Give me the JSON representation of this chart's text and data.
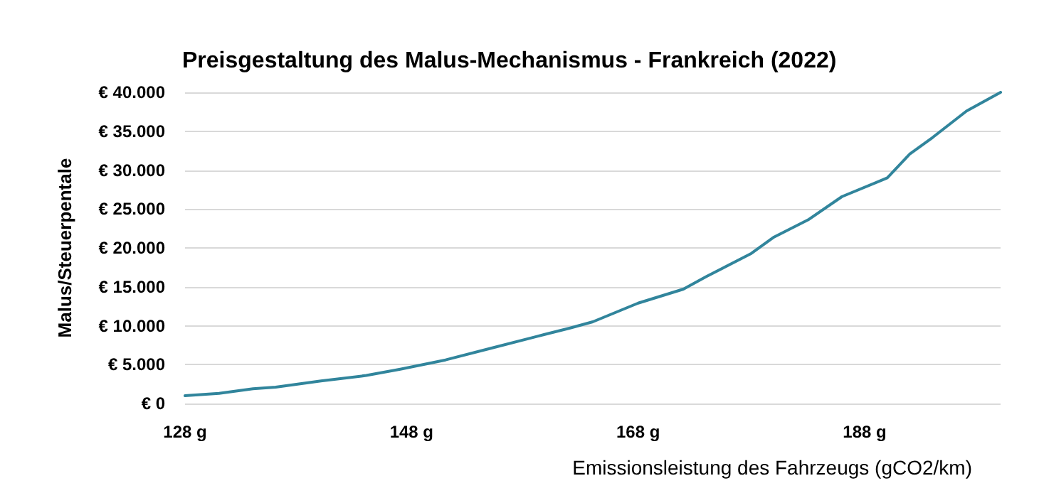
{
  "chart_data": {
    "type": "line",
    "title": "Preisgestaltung des Malus-Mechanismus - Frankreich (2022)",
    "xlabel": "Emissionsleistung des Fahrzeugs (gCO2/km)",
    "ylabel": "Malus/Steuerpentale",
    "x": [
      128,
      131,
      134,
      136,
      140,
      144,
      147,
      151,
      155,
      159,
      162,
      164,
      168,
      172,
      174,
      178,
      180,
      183,
      186,
      190,
      192,
      194,
      197,
      200
    ],
    "series": [
      {
        "color": "#31859c",
        "values": [
          1000,
          1300,
          1900,
          2100,
          2900,
          3600,
          4400,
          5600,
          7100,
          8600,
          9700,
          10500,
          12900,
          14700,
          16300,
          19300,
          21400,
          23600,
          26600,
          29000,
          32100,
          34200,
          37600,
          40000
        ]
      }
    ],
    "xlim": [
      128,
      200
    ],
    "xticks": [
      {
        "value": 128,
        "label": "128 g"
      },
      {
        "value": 148,
        "label": "148 g"
      },
      {
        "value": 168,
        "label": "168 g"
      },
      {
        "value": 188,
        "label": "188 g"
      }
    ],
    "ylim": [
      0,
      40000
    ],
    "yticks": [
      {
        "value": 0,
        "label": "€ 0"
      },
      {
        "value": 5000,
        "label": "€ 5.000"
      },
      {
        "value": 10000,
        "label": "€ 10.000"
      },
      {
        "value": 15000,
        "label": "€ 15.000"
      },
      {
        "value": 20000,
        "label": "€ 20.000"
      },
      {
        "value": 25000,
        "label": "€ 25.000"
      },
      {
        "value": 30000,
        "label": "€ 30.000"
      },
      {
        "value": 35000,
        "label": "€ 35.000"
      },
      {
        "value": 40000,
        "label": "€ 40.000"
      }
    ],
    "grid": "y",
    "marker": "none",
    "line_style": "solid"
  }
}
